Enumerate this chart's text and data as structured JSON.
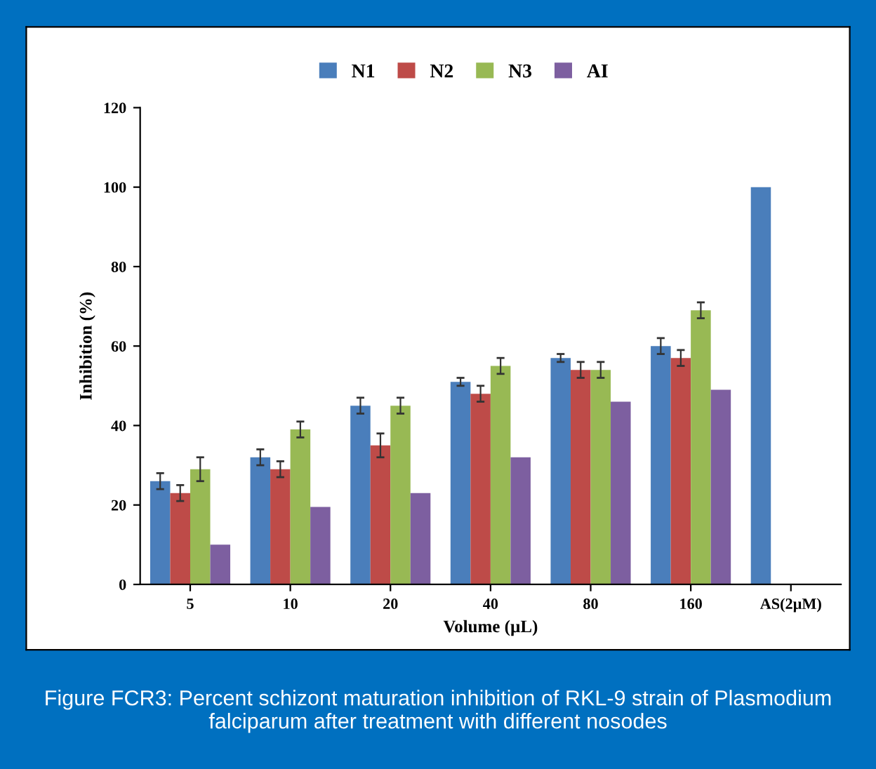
{
  "chart_data": {
    "type": "bar",
    "xlabel": "Volume (µL)",
    "ylabel": "Inhibition (%)",
    "categories": [
      "5",
      "10",
      "20",
      "40",
      "80",
      "160",
      "AS(2µM)"
    ],
    "series": [
      {
        "name": "N1",
        "color": "#4a7ebb",
        "values": [
          26,
          32,
          45,
          51,
          57,
          60,
          100
        ],
        "errors": [
          2,
          2,
          2,
          1,
          1,
          2,
          null
        ]
      },
      {
        "name": "N2",
        "color": "#be4b48",
        "values": [
          23,
          29,
          35,
          48,
          54,
          57,
          null
        ],
        "errors": [
          2,
          2,
          3,
          2,
          2,
          2,
          null
        ]
      },
      {
        "name": "N3",
        "color": "#98b954",
        "values": [
          29,
          39,
          45,
          55,
          54,
          69,
          null
        ],
        "errors": [
          3,
          2,
          2,
          2,
          2,
          2,
          null
        ]
      },
      {
        "name": "AI",
        "color": "#7d5fa0",
        "values": [
          10,
          19.5,
          23,
          32,
          46,
          49,
          null
        ]
      }
    ],
    "ylim": [
      0,
      120
    ],
    "yticks": [
      0,
      20,
      40,
      60,
      80,
      100,
      120
    ],
    "grid": false,
    "legend": "top",
    "annotations": [
      "Figure FCR3: Percent schizont maturation inhibition of RKL-9 strain of Plasmodium falciparum after treatment with different nosodes"
    ]
  }
}
